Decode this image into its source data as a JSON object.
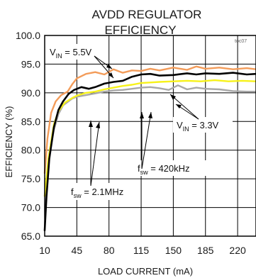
{
  "chart_data": {
    "type": "line",
    "title": [
      "AVDD REGULATOR",
      "EFFICIENCY"
    ],
    "code": "toc07",
    "xlabel": "LOAD CURRENT (mA)",
    "ylabel": "EFFICIENCY (%)",
    "xlim": [
      10,
      240
    ],
    "ylim": [
      65,
      100
    ],
    "xticks": [
      10,
      45,
      80,
      115,
      150,
      185,
      220
    ],
    "xtick_labels": [
      "10",
      "45",
      "80",
      "115",
      "150",
      "185",
      "220"
    ],
    "yticks": [
      65,
      70,
      75,
      80,
      85,
      90,
      95,
      100
    ],
    "ytick_labels": [
      "65.0",
      "70.0",
      "75.0",
      "80.0",
      "85.0",
      "90.0",
      "95.0",
      "100.0"
    ],
    "grid": true,
    "series": [
      {
        "color": "#f39c5a",
        "x": [
          10,
          13,
          17,
          22,
          28,
          35,
          40,
          45,
          55,
          65,
          75,
          85,
          95,
          105,
          115,
          125,
          135,
          150,
          165,
          175,
          185,
          200,
          215,
          230,
          240
        ],
        "y": [
          76,
          82,
          86.5,
          88.5,
          89.6,
          90.2,
          91.5,
          92.5,
          93.3,
          93.6,
          93.2,
          94.1,
          93.5,
          93.9,
          93.8,
          94.2,
          93.9,
          94.4,
          94.0,
          94.6,
          94.2,
          94.4,
          94.1,
          94.3,
          94.1
        ]
      },
      {
        "color": "#a8a8a8",
        "x": [
          10,
          15,
          20,
          25,
          30,
          40,
          45,
          55,
          65,
          75,
          85,
          95,
          105,
          115,
          125,
          135,
          145,
          155,
          165,
          175,
          185,
          200,
          215,
          230,
          240
        ],
        "y": [
          72,
          79,
          83.5,
          86.3,
          87.8,
          89,
          89.3,
          89.6,
          89.9,
          90.2,
          90.4,
          90.5,
          90.7,
          90.9,
          91.0,
          90.8,
          90.5,
          91.3,
          90.6,
          90.9,
          90.7,
          90.6,
          90.3,
          90.2,
          90.2
        ]
      },
      {
        "color": "#f7f21a",
        "x": [
          10,
          14,
          20,
          25,
          32,
          40,
          45,
          55,
          65,
          75,
          85,
          95,
          105,
          115,
          125,
          135,
          150,
          165,
          180,
          195,
          210,
          225,
          240
        ],
        "y": [
          72,
          78.5,
          84.5,
          86.8,
          88.3,
          89.1,
          89.5,
          90.0,
          90.2,
          90.6,
          90.9,
          91.2,
          91.4,
          91.7,
          91.8,
          91.9,
          92.0,
          92.1,
          92.0,
          92.2,
          92.0,
          92.1,
          92.0
        ]
      },
      {
        "color": "#000000",
        "x": [
          10,
          12,
          15,
          20,
          25,
          30,
          36,
          42,
          50,
          58,
          65,
          75,
          85,
          95,
          105,
          115,
          125,
          135,
          150,
          165,
          175,
          185,
          200,
          215,
          230,
          240
        ],
        "y": [
          66,
          72,
          78.5,
          84,
          87,
          88.5,
          89.8,
          90.5,
          91.0,
          90.7,
          91.0,
          91.6,
          91.9,
          92.1,
          92.8,
          93.2,
          93.3,
          93.0,
          93.1,
          93.4,
          93.2,
          93.4,
          93.3,
          93.5,
          93.2,
          93.3
        ]
      }
    ],
    "annotations": {
      "vin_high": {
        "main": "V",
        "sub": "IN",
        "rest": " = 5.5V"
      },
      "vin_low": {
        "main": "V",
        "sub": "IN",
        "rest": " = 3.3V"
      },
      "fsw_low": {
        "main": "f",
        "sub": "sw",
        "rest": " = 420kHz"
      },
      "fsw_high": {
        "main": "f",
        "sub": "sw",
        "rest": " = 2.1MHz"
      }
    }
  }
}
